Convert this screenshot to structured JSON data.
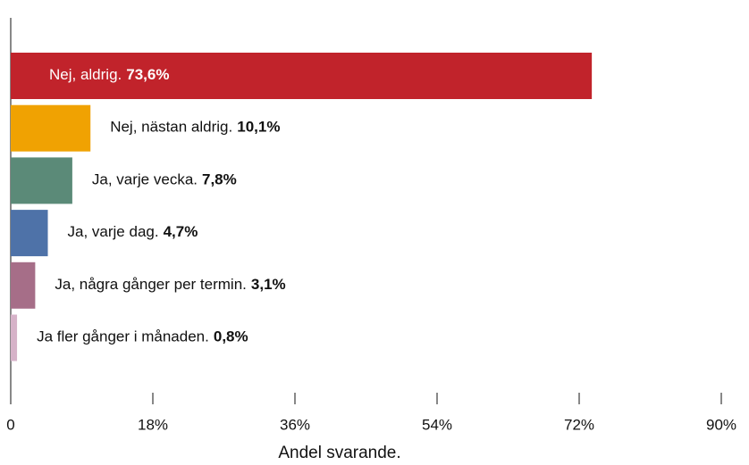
{
  "chart_data": {
    "type": "bar",
    "orientation": "horizontal",
    "categories": [
      "Nej, aldrig.",
      "Nej, nästan aldrig.",
      "Ja, varje vecka.",
      "Ja, varje dag.",
      "Ja, några gånger per termin.",
      "Ja fler gånger i månaden."
    ],
    "values": [
      73.6,
      10.1,
      7.8,
      4.7,
      3.1,
      0.8
    ],
    "value_labels": [
      "73,6%",
      "10,1%",
      "7,8%",
      "4,7%",
      "3,1%",
      "0,8%"
    ],
    "colors": [
      "#c1232b",
      "#f0a202",
      "#5b8a78",
      "#4e72a8",
      "#a66e88",
      "#d6b2c8"
    ],
    "xlim": [
      0,
      90
    ],
    "xticks": [
      0,
      {
        "value": 18,
        "label": "18%"
      },
      {
        "value": 36,
        "label": "36%"
      },
      {
        "value": 54,
        "label": "54%"
      },
      {
        "value": 72,
        "label": "72%"
      },
      {
        "value": 90,
        "label": "90%"
      }
    ],
    "xlabel": "Andel svarande.",
    "grid": false
  }
}
